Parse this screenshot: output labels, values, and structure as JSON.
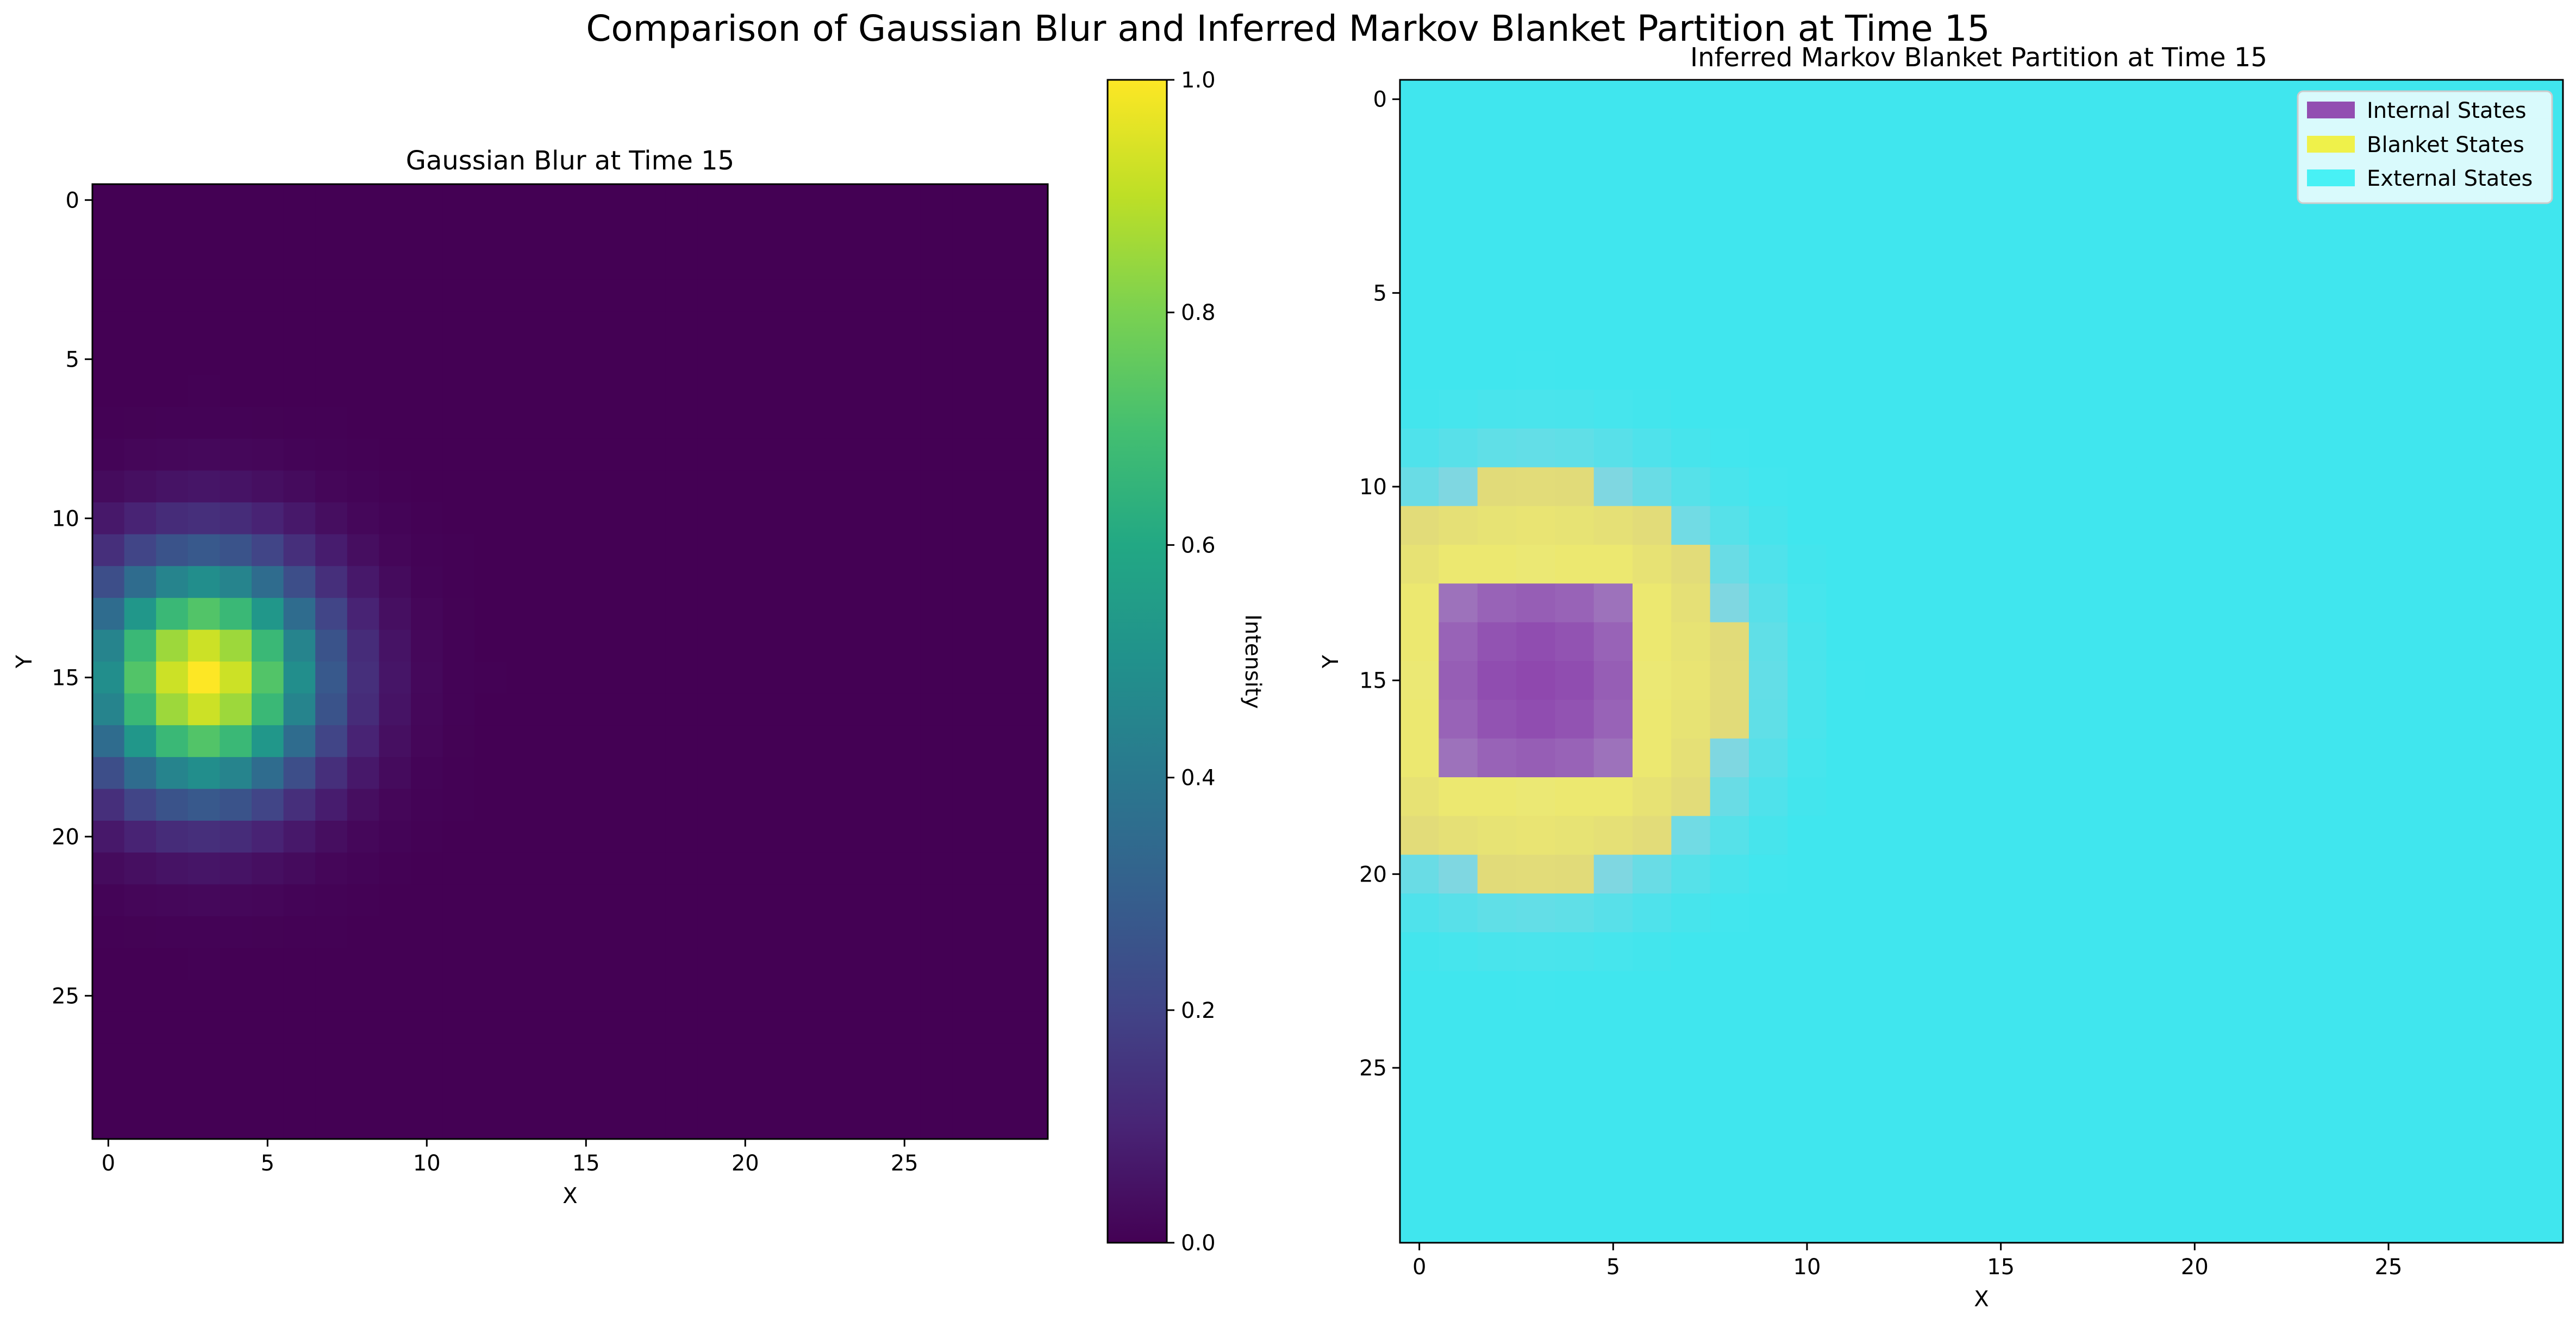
{
  "figure": {
    "title": "Comparison of Gaussian Blur and Inferred Markov Blanket Partition at Time 15"
  },
  "chart_data": [
    {
      "type": "heatmap",
      "title": "Gaussian Blur at Time 15",
      "xlabel": "X",
      "ylabel": "Y",
      "grid_size": [
        30,
        30
      ],
      "x_ticks": [
        0,
        5,
        10,
        15,
        20,
        25
      ],
      "y_ticks": [
        0,
        5,
        10,
        15,
        20,
        25
      ],
      "peak": {
        "x": 3,
        "y": 15,
        "value": 1.0
      },
      "sigma": 2.5,
      "colormap": "viridis",
      "colorbar": {
        "label": "Intensity",
        "ticks": [
          "0.0",
          "0.2",
          "0.4",
          "0.6",
          "0.8",
          "1.0"
        ],
        "range": [
          0,
          1
        ]
      },
      "grid": false
    },
    {
      "type": "heatmap",
      "title": "Inferred Markov Blanket Partition at Time 15",
      "xlabel": "X",
      "ylabel": "Y",
      "grid_size": [
        30,
        30
      ],
      "x_ticks": [
        0,
        5,
        10,
        15,
        20,
        25
      ],
      "y_ticks": [
        0,
        5,
        10,
        15,
        20,
        25
      ],
      "center": {
        "x": 3,
        "y": 15
      },
      "sigma": 2.5,
      "categories": [
        {
          "name": "Internal States",
          "color": "#8e44ad",
          "rule": "x 1-5, y 13-17"
        },
        {
          "name": "Blanket States",
          "color": "#f0f040",
          "rule": "intensity >= 0.1"
        },
        {
          "name": "External States",
          "color": "#40e6ee",
          "rule": "remaining"
        }
      ],
      "legend_position": "upper-right",
      "grid": false
    }
  ]
}
